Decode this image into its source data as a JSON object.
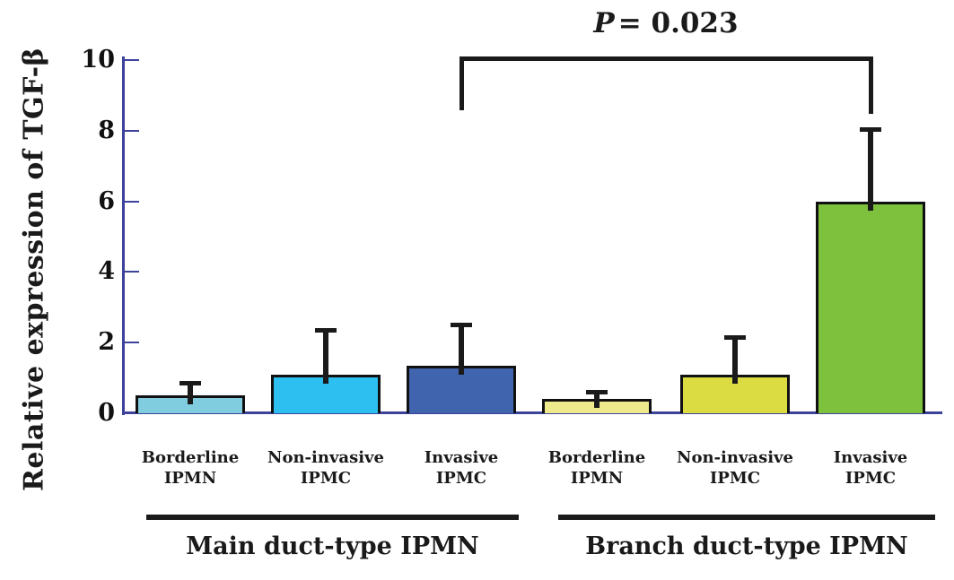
{
  "figure": {
    "axis_color": "#3d429b",
    "ink_color": "#1a1a1a",
    "background": "#ffffff"
  },
  "chart_data": {
    "type": "bar",
    "title": "",
    "ylabel": "Relative expression of TGF-β",
    "xlabel": "",
    "ylim": [
      0,
      10
    ],
    "yticks": [
      0,
      2,
      4,
      6,
      8,
      10
    ],
    "grid": "off",
    "legend": "none",
    "categories": [
      [
        "Borderline",
        "IPMN"
      ],
      [
        "Non-invasive",
        "IPMC"
      ],
      [
        "Invasive",
        "IPMC"
      ],
      [
        "Borderline",
        "IPMN"
      ],
      [
        "Non-invasive",
        "IPMC"
      ],
      [
        "Invasive",
        "IPMC"
      ]
    ],
    "values": [
      0.5,
      1.1,
      1.35,
      0.4,
      1.1,
      6.0
    ],
    "errors_plus": [
      0.3,
      1.2,
      1.1,
      0.15,
      1.0,
      2.0
    ],
    "bar_colors": [
      "#7fcdde",
      "#2cbfef",
      "#4164ae",
      "#efe98d",
      "#dadc42",
      "#7dc13c"
    ],
    "groups": [
      {
        "label": "Main duct-type IPMN",
        "bar_indices": [
          0,
          1,
          2
        ]
      },
      {
        "label": "Branch duct-type IPMN",
        "bar_indices": [
          3,
          4,
          5
        ]
      }
    ],
    "annotation": {
      "symbol": "P",
      "rest": "= 0.023",
      "connects": [
        "Invasive IPMC (Main duct-type IPMN)",
        "Invasive IPMC (Branch duct-type IPMN)"
      ]
    }
  }
}
